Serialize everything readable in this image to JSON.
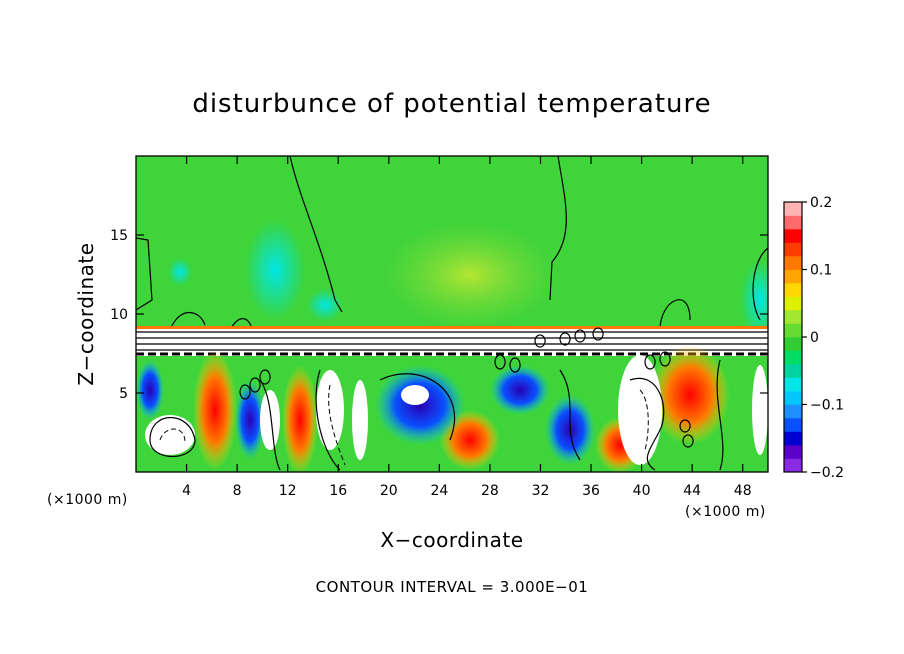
{
  "chart_data": {
    "type": "heatmap",
    "title": "disturbunce of potential temperature",
    "xlabel": "X−coordinate",
    "ylabel": "Z−coordinate",
    "x_unit_left": "(×1000 m)",
    "x_unit_right": "(×1000 m)",
    "footer": "CONTOUR INTERVAL = 3.000E−01",
    "xlim": [
      0,
      50
    ],
    "ylim": [
      0,
      20
    ],
    "x_ticks": [
      4,
      8,
      12,
      16,
      20,
      24,
      28,
      32,
      36,
      40,
      44,
      48
    ],
    "x_tick_labels": [
      "4",
      "8",
      "12",
      "16",
      "20",
      "24",
      "28",
      "32",
      "36",
      "40",
      "44",
      "48"
    ],
    "y_ticks": [
      5,
      10,
      15
    ],
    "y_tick_labels": [
      "5",
      "10",
      "15"
    ],
    "colorbar": {
      "range": [
        -0.2,
        0.2
      ],
      "ticks": [
        0.2,
        0.1,
        0,
        -0.1,
        -0.2
      ],
      "tick_labels": [
        "0.2",
        "0.1",
        "0",
        "−0.1",
        "−0.2"
      ],
      "colors": [
        "#8a2be2",
        "#5a00c8",
        "#0000d2",
        "#0a50ff",
        "#1e90ff",
        "#00c8ff",
        "#00e6e6",
        "#00d2a0",
        "#00dc64",
        "#32cd32",
        "#64dc32",
        "#a0e632",
        "#dcf000",
        "#ffd700",
        "#ffa500",
        "#ff7800",
        "#ff3c00",
        "#ff0000",
        "#ff6a6a",
        "#ffb4b4"
      ]
    },
    "regions": {
      "upper_field_value": 0.0,
      "inversion_layer_z": 8.5,
      "lower_turbulent_layer_z": [
        0,
        7.5
      ]
    }
  }
}
